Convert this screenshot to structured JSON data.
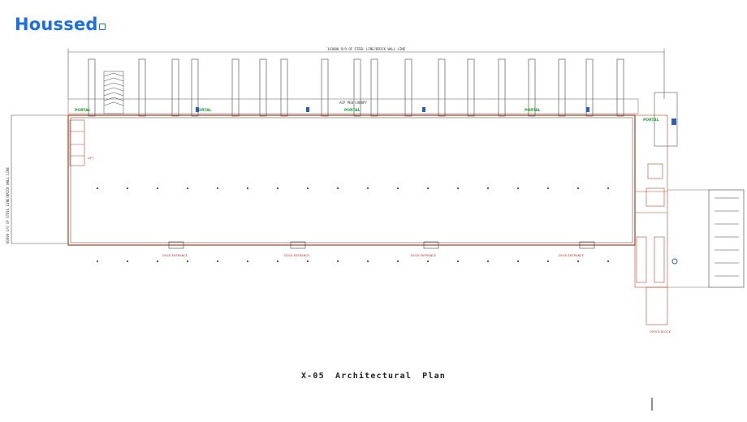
{
  "brand": {
    "name": "Houssed"
  },
  "drawing": {
    "top_dimension": "143000 O/O OF STEEL LINE/BRICK WALL LINE",
    "side_dimension": "60000 O/O OF STEEL LINE/BRICK WALL LINE",
    "caption": "X-05 Architectural Plan",
    "canopy_label": "ACP PEB CANOPY",
    "portal_label": "PORTAL",
    "dock_label": "DOCK ENTRANCE",
    "office_label": "OFFICE BLOCK"
  },
  "colors": {
    "brand_blue": "#1c6fe0",
    "wall_red": "#b7472a",
    "portal_green": "#21a32c"
  }
}
